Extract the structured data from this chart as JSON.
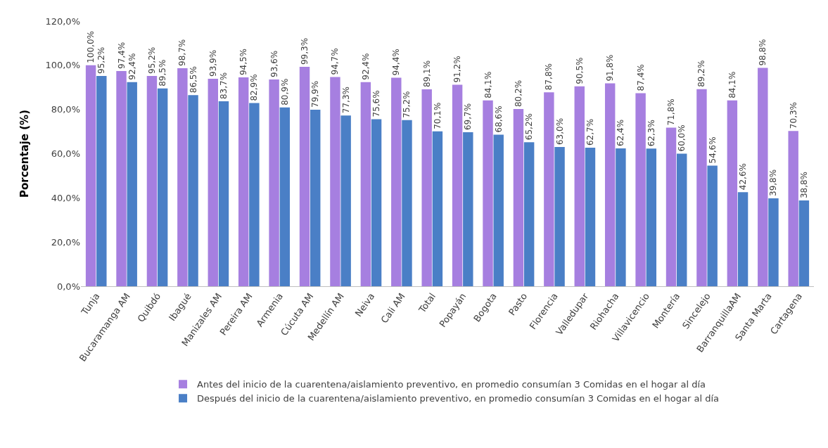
{
  "chart_data": {
    "type": "bar",
    "ylabel": "Porcentaje (%)",
    "legend": "bottom",
    "grid": false,
    "categories": [
      "Tunja",
      "Bucaramanga AM",
      "Quibdó",
      "Ibagué",
      "Manizales AM",
      "Pereira AM",
      "Armenia",
      "Cúcuta AM",
      "Medellín AM",
      "Neiva",
      "Cali AM",
      "Total",
      "Popayán",
      "Bogota",
      "Pasto",
      "Florencia",
      "Valledupar",
      "Riohacha",
      "Villavicencio",
      "Montería",
      "Sincelejo",
      "BarranquillaAM",
      "Santa Marta",
      "Cartagena"
    ],
    "ylim": [
      0,
      120
    ],
    "yticks": [
      {
        "value": 0,
        "label": "0,0%"
      },
      {
        "value": 20,
        "label": "20,0%"
      },
      {
        "value": 40,
        "label": "40,0%"
      },
      {
        "value": 60,
        "label": "60,0%"
      },
      {
        "value": 80,
        "label": "80,0%"
      },
      {
        "value": 100,
        "label": "100,0%"
      },
      {
        "value": 120,
        "label": "120,0%"
      }
    ],
    "series": [
      {
        "name": "Antes del inicio de la cuarentena/aislamiento preventivo, en promedio consumían 3 Comidas en el hogar al día",
        "color": "#a67fe0",
        "values": [
          100.0,
          97.4,
          95.2,
          98.7,
          93.9,
          94.5,
          93.6,
          99.3,
          94.7,
          92.4,
          94.4,
          89.1,
          91.2,
          84.1,
          80.2,
          87.8,
          90.5,
          91.8,
          87.4,
          71.8,
          89.2,
          84.1,
          98.8,
          70.3
        ],
        "value_labels": [
          "100,0%",
          "97,4%",
          "95,2%",
          "98,7%",
          "93,9%",
          "94,5%",
          "93,6%",
          "99,3%",
          "94,7%",
          "92,4%",
          "94,4%",
          "89,1%",
          "91,2%",
          "84,1%",
          "80,2%",
          "87,8%",
          "90,5%",
          "91,8%",
          "87,4%",
          "71,8%",
          "89,2%",
          "84,1%",
          "98,8%",
          "70,3%"
        ]
      },
      {
        "name": "Después del inicio de la cuarentena/aislamiento preventivo, en promedio consumían 3 Comidas en el hogar al día",
        "color": "#4a7fc6",
        "values": [
          95.2,
          92.4,
          89.5,
          86.5,
          83.7,
          82.9,
          80.9,
          79.9,
          77.3,
          75.6,
          75.2,
          70.1,
          69.7,
          68.6,
          65.2,
          63.0,
          62.7,
          62.4,
          62.3,
          60.0,
          54.6,
          42.6,
          39.8,
          38.8
        ],
        "value_labels": [
          "95,2%",
          "92,4%",
          "89,5%",
          "86,5%",
          "83,7%",
          "82,9%",
          "80,9%",
          "79,9%",
          "77,3%",
          "75,6%",
          "75,2%",
          "70,1%",
          "69,7%",
          "68,6%",
          "65,2%",
          "63,0%",
          "62,7%",
          "62,4%",
          "62,3%",
          "60,0%",
          "54,6%",
          "42,6%",
          "39,8%",
          "38,8%"
        ]
      }
    ]
  }
}
